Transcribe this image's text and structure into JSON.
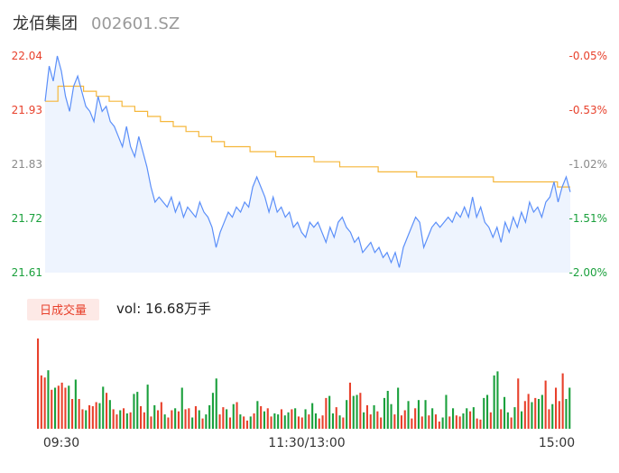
{
  "header": {
    "name": "龙佰集团",
    "code": "002601.SZ"
  },
  "colors": {
    "price_line": "#5b8ff9",
    "price_fill": "#eef4fe",
    "avg_line": "#f5b73b",
    "up": "#e8412c",
    "down": "#1aa03c",
    "badge_bg": "#fde9e6",
    "neutral_text": "#8a8a8a"
  },
  "volume_panel": {
    "badge_label": "日成交量",
    "vol_text": "vol: 16.68万手"
  },
  "chart_data": [
    {
      "type": "line",
      "y_left_ticks": [
        "22.04",
        "21.93",
        "21.83",
        "21.72",
        "21.61"
      ],
      "y_right_ticks": [
        "-0.05%",
        "-0.53%",
        "-1.02%",
        "-1.51%",
        "-2.00%"
      ],
      "ylim": [
        21.61,
        22.04
      ],
      "x_ticks": [
        "09:30",
        "11:30/13:00",
        "15:00"
      ],
      "series": [
        {
          "key": "price",
          "values": [
            21.95,
            22.02,
            21.99,
            22.04,
            22.01,
            21.96,
            21.93,
            21.98,
            22.0,
            21.97,
            21.94,
            21.93,
            21.91,
            21.96,
            21.93,
            21.94,
            21.91,
            21.9,
            21.88,
            21.86,
            21.9,
            21.86,
            21.84,
            21.88,
            21.85,
            21.82,
            21.78,
            21.75,
            21.76,
            21.75,
            21.74,
            21.76,
            21.73,
            21.75,
            21.72,
            21.74,
            21.73,
            21.72,
            21.75,
            21.73,
            21.72,
            21.7,
            21.66,
            21.69,
            21.71,
            21.73,
            21.72,
            21.74,
            21.73,
            21.75,
            21.74,
            21.78,
            21.8,
            21.78,
            21.76,
            21.73,
            21.76,
            21.73,
            21.74,
            21.72,
            21.73,
            21.7,
            21.71,
            21.69,
            21.68,
            21.71,
            21.7,
            21.71,
            21.69,
            21.67,
            21.7,
            21.68,
            21.71,
            21.72,
            21.7,
            21.69,
            21.67,
            21.68,
            21.65,
            21.66,
            21.67,
            21.65,
            21.66,
            21.64,
            21.65,
            21.63,
            21.65,
            21.62,
            21.66,
            21.68,
            21.7,
            21.72,
            21.71,
            21.66,
            21.68,
            21.7,
            21.71,
            21.7,
            21.71,
            21.72,
            21.71,
            21.73,
            21.72,
            21.74,
            21.72,
            21.76,
            21.72,
            21.74,
            21.71,
            21.7,
            21.68,
            21.7,
            21.67,
            21.71,
            21.69,
            21.72,
            21.7,
            21.73,
            21.71,
            21.75,
            21.73,
            21.74,
            21.72,
            21.75,
            21.76,
            21.79,
            21.75,
            21.78,
            21.8,
            21.77
          ],
          "x_step_count": 130
        },
        {
          "key": "average",
          "values": [
            21.95,
            21.98,
            21.98,
            21.97,
            21.96,
            21.95,
            21.94,
            21.93,
            21.92,
            21.91,
            21.9,
            21.89,
            21.88,
            21.87,
            21.86,
            21.86,
            21.85,
            21.85,
            21.84,
            21.84,
            21.84,
            21.83,
            21.83,
            21.82,
            21.82,
            21.82,
            21.81,
            21.81,
            21.81,
            21.8,
            21.8,
            21.8,
            21.8,
            21.8,
            21.8,
            21.79,
            21.79,
            21.79,
            21.79,
            21.79,
            21.78,
            21.78
          ]
        }
      ]
    },
    {
      "type": "bar",
      "series": [
        {
          "key": "volume",
          "values": [
            88,
            52,
            50,
            57,
            38,
            40,
            42,
            45,
            40,
            42,
            29,
            48,
            29,
            19,
            18,
            23,
            22,
            26,
            25,
            41,
            35,
            28,
            19,
            14,
            18,
            20,
            15,
            16,
            34,
            36,
            22,
            16,
            43,
            12,
            23,
            18,
            26,
            14,
            11,
            18,
            20,
            17,
            40,
            19,
            20,
            11,
            22,
            18,
            10,
            14,
            23,
            35,
            49,
            14,
            21,
            19,
            11,
            24,
            26,
            14,
            12,
            8,
            12,
            15,
            27,
            22,
            17,
            20,
            12,
            15,
            14,
            19,
            13,
            16,
            19,
            20,
            12,
            11,
            19,
            14,
            25,
            15,
            10,
            13,
            30,
            32,
            15,
            21,
            13,
            11,
            28,
            45,
            32,
            33,
            35,
            16,
            23,
            14,
            23,
            17,
            11,
            30,
            37,
            24,
            14,
            40,
            13,
            18,
            27,
            10,
            20,
            28,
            12,
            28,
            13,
            20,
            14,
            7,
            11,
            33,
            12,
            20,
            13,
            12,
            15,
            20,
            17,
            21,
            10,
            9,
            30,
            33,
            16,
            52,
            56,
            19,
            31,
            16,
            11,
            21,
            49,
            17,
            27,
            34,
            26,
            30,
            29,
            33,
            47,
            19,
            24,
            40,
            27,
            54,
            29,
            40
          ]
        },
        {
          "key": "volume_dir",
          "values": [
            1,
            1,
            1,
            0,
            1,
            0,
            1,
            1,
            1,
            0,
            1,
            0,
            1,
            1,
            0,
            1,
            1,
            1,
            0,
            0,
            1,
            0,
            1,
            1,
            0,
            1,
            0,
            1,
            0,
            0,
            1,
            1,
            0,
            1,
            0,
            1,
            1,
            0,
            1,
            1,
            0,
            1,
            0,
            1,
            1,
            0,
            1,
            0,
            1,
            0,
            0,
            0,
            0,
            1,
            1,
            0,
            1,
            0,
            1,
            0,
            1,
            1,
            0,
            1,
            0,
            1,
            0,
            1,
            1,
            0,
            0,
            1,
            0,
            0,
            1,
            0,
            1,
            1,
            0,
            1,
            0,
            0,
            1,
            1,
            1,
            0,
            0,
            1,
            0,
            1,
            0,
            1,
            0,
            0,
            1,
            0,
            1,
            1,
            0,
            1,
            1,
            0,
            0,
            0,
            1,
            0,
            1,
            1,
            0,
            1,
            1,
            0,
            1,
            0,
            1,
            0,
            1,
            1,
            0,
            0,
            1,
            0,
            1,
            1,
            0,
            0,
            1,
            0,
            1,
            1,
            0,
            0,
            1,
            0,
            0,
            1,
            0,
            0,
            1,
            0,
            1,
            0,
            1,
            1,
            0,
            1,
            0,
            0,
            1,
            1,
            0,
            1,
            1,
            1,
            0,
            0
          ]
        }
      ]
    }
  ]
}
